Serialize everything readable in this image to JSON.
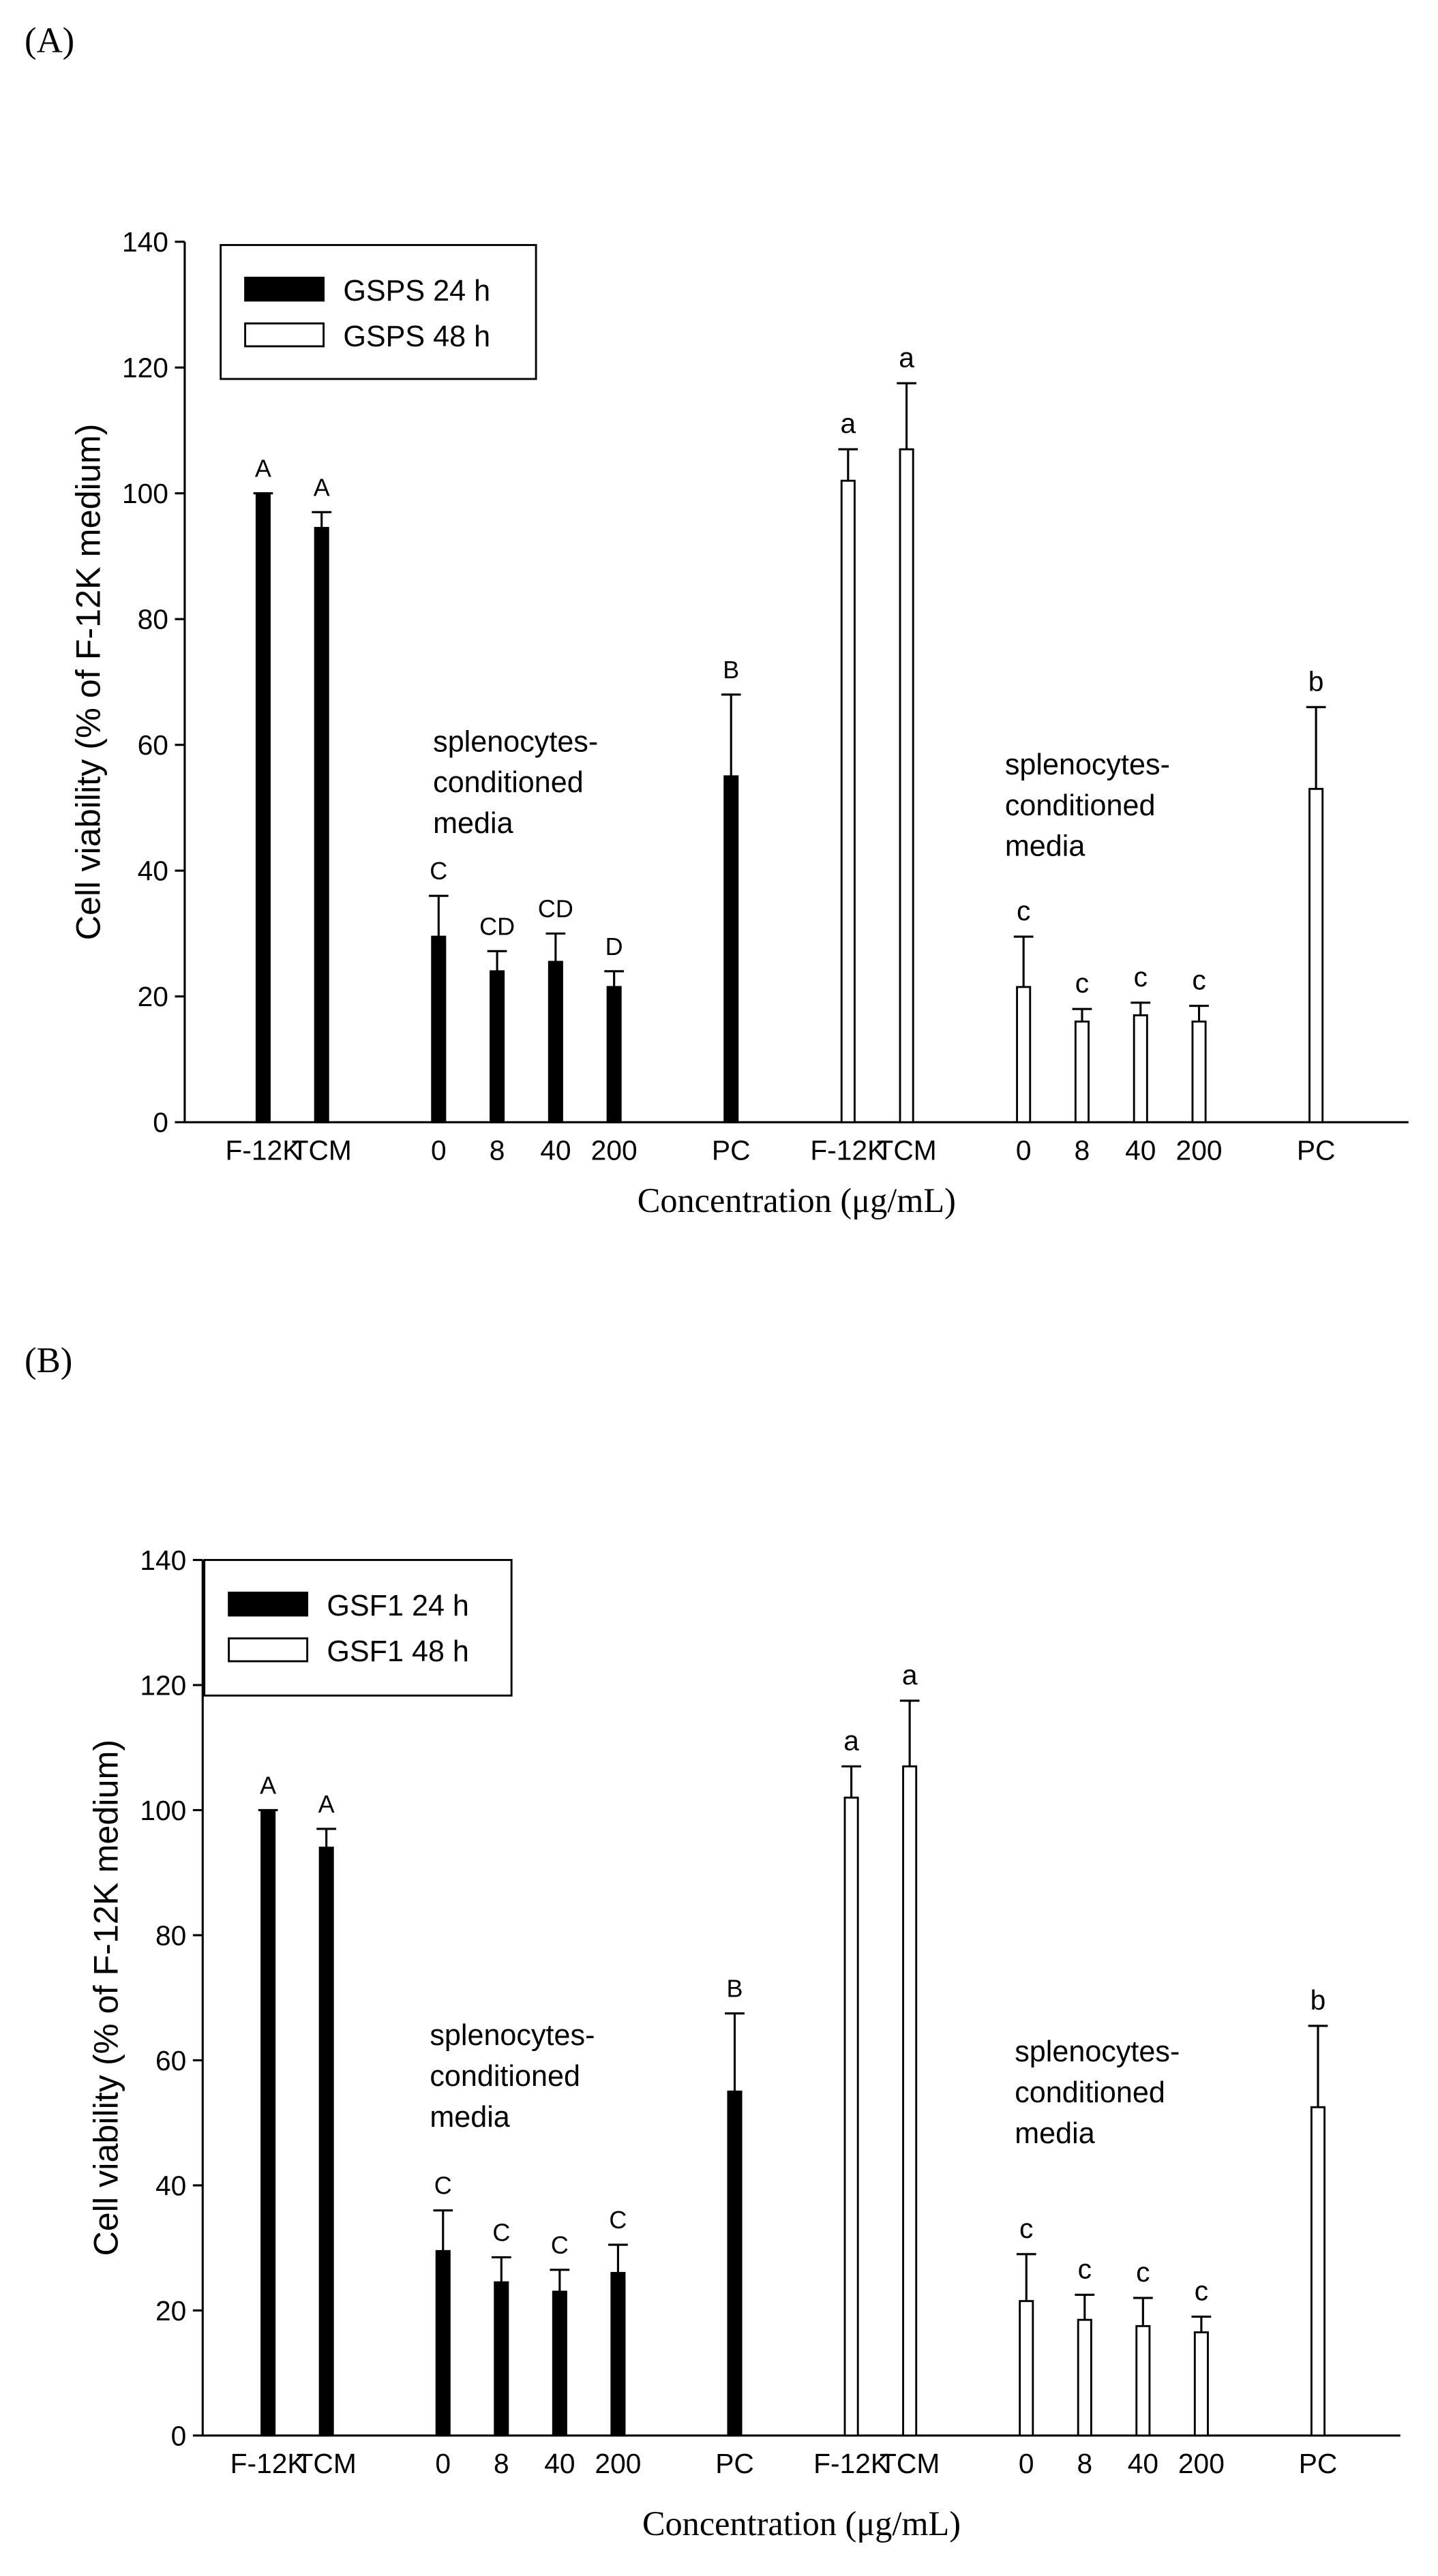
{
  "chart_data": [
    {
      "type": "bar",
      "panel": "(A)",
      "ylabel": "Cell viability (% of F-12K medium)",
      "xlabel": "Concentration (μg/mL)",
      "categories": [
        "F-12K",
        "TCM",
        "0",
        "8",
        "40",
        "200",
        "PC",
        "F-12K",
        "TCM",
        "0",
        "8",
        "40",
        "200",
        "PC"
      ],
      "series": [
        {
          "name": "GSPS 24 h",
          "color": "#000000",
          "values": [
            100,
            94.5,
            29.5,
            24,
            25.5,
            21.5,
            55,
            null,
            null,
            null,
            null,
            null,
            null,
            null
          ],
          "errors": [
            0,
            2.5,
            6.5,
            3.2,
            4.5,
            2.5,
            13,
            null,
            null,
            null,
            null,
            null,
            null,
            null
          ],
          "letters": [
            "A",
            "A",
            "C",
            "CD",
            "CD",
            "D",
            "B",
            null,
            null,
            null,
            null,
            null,
            null,
            null
          ]
        },
        {
          "name": "GSPS 48 h",
          "color": "#ffffff",
          "values": [
            null,
            null,
            null,
            null,
            null,
            null,
            null,
            102,
            107,
            21.5,
            16,
            17,
            16,
            53
          ],
          "errors": [
            null,
            null,
            null,
            null,
            null,
            null,
            null,
            5,
            10.5,
            8,
            2,
            2,
            2.5,
            13
          ],
          "letters": [
            null,
            null,
            null,
            null,
            null,
            null,
            null,
            "a",
            "a",
            "c",
            "c",
            "c",
            "c",
            "b"
          ]
        }
      ],
      "annotations": [
        [
          "splenocytes-",
          "conditioned",
          "media"
        ],
        [
          "splenocytes-",
          "conditioned",
          "media"
        ]
      ],
      "ylim": [
        0,
        140
      ],
      "yticks": [
        0,
        20,
        40,
        60,
        80,
        100,
        120,
        140
      ],
      "legend": "upper left"
    },
    {
      "type": "bar",
      "panel": "(B)",
      "ylabel": "Cell viability (% of F-12K medium)",
      "xlabel": "Concentration (μg/mL)",
      "categories": [
        "F-12K",
        "TCM",
        "0",
        "8",
        "40",
        "200",
        "PC",
        "F-12K",
        "TCM",
        "0",
        "8",
        "40",
        "200",
        "PC"
      ],
      "series": [
        {
          "name": "GSF1 24 h",
          "color": "#000000",
          "values": [
            100,
            94,
            29.5,
            24.5,
            23,
            26,
            55,
            null,
            null,
            null,
            null,
            null,
            null,
            null
          ],
          "errors": [
            0,
            3,
            6.5,
            4,
            3.5,
            4.5,
            12.5,
            null,
            null,
            null,
            null,
            null,
            null,
            null
          ],
          "letters": [
            "A",
            "A",
            "C",
            "C",
            "C",
            "C",
            "B",
            null,
            null,
            null,
            null,
            null,
            null,
            null
          ]
        },
        {
          "name": "GSF1 48 h",
          "color": "#ffffff",
          "values": [
            null,
            null,
            null,
            null,
            null,
            null,
            null,
            102,
            107,
            21.5,
            18.5,
            17.5,
            16.5,
            52.5
          ],
          "errors": [
            null,
            null,
            null,
            null,
            null,
            null,
            null,
            5,
            10.5,
            7.5,
            4,
            4.5,
            2.5,
            13
          ],
          "letters": [
            null,
            null,
            null,
            null,
            null,
            null,
            null,
            "a",
            "a",
            "c",
            "c",
            "c",
            "c",
            "b"
          ]
        }
      ],
      "annotations": [
        [
          "splenocytes-",
          "conditioned",
          "media"
        ],
        [
          "splenocytes-",
          "conditioned",
          "media"
        ]
      ],
      "ylim": [
        0,
        140
      ],
      "yticks": [
        0,
        20,
        40,
        60,
        80,
        100,
        120,
        140
      ],
      "legend": "upper left"
    }
  ]
}
